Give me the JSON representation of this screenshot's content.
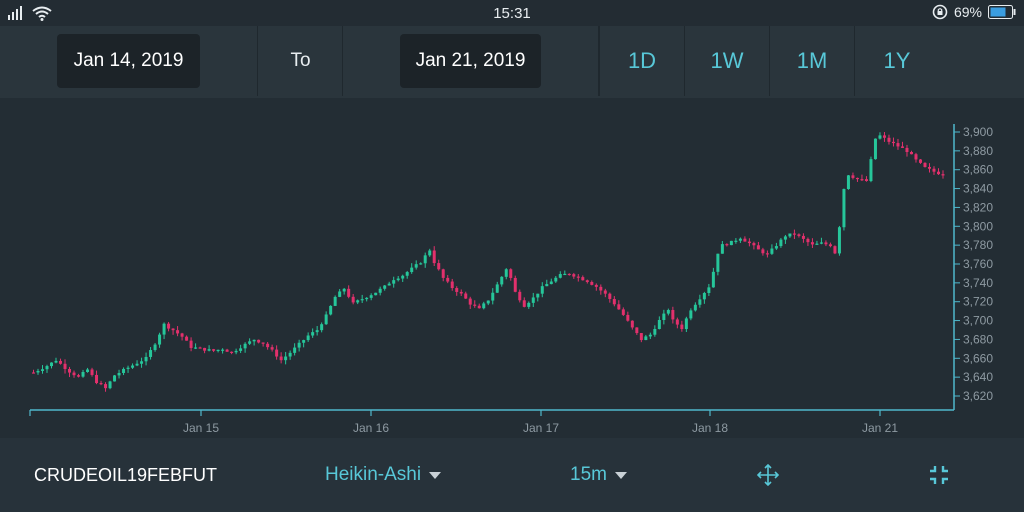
{
  "status": {
    "time": "15:31",
    "battery": "69%"
  },
  "toolbar": {
    "from_date": "Jan 14, 2019",
    "to_label": "To",
    "to_date": "Jan 21, 2019",
    "ranges": [
      "1D",
      "1W",
      "1M",
      "1Y"
    ]
  },
  "bottom": {
    "symbol": "CRUDEOIL19FEBFUT",
    "chart_type": "Heikin-Ashi",
    "interval": "15m"
  },
  "colors": {
    "up": "#26c69a",
    "down": "#e2306c",
    "accent": "#58c8d8",
    "axis": "#4fb8cc"
  },
  "chart_data": {
    "type": "candlestick",
    "style": "Heikin-Ashi",
    "x_labels": [
      "Jan 15",
      "Jan 16",
      "Jan 17",
      "Jan 18",
      "Jan 21"
    ],
    "ylim": [
      3610,
      3910
    ],
    "y_ticks": [
      3620,
      3640,
      3660,
      3680,
      3700,
      3720,
      3740,
      3760,
      3780,
      3800,
      3820,
      3840,
      3860,
      3880,
      3900
    ],
    "y_tick_labels": [
      "3,620",
      "3,640",
      "3,660",
      "3,680",
      "3,700",
      "3,720",
      "3,740",
      "3,760",
      "3,780",
      "3,800",
      "3,820",
      "3,840",
      "3,860",
      "3,880",
      "3,900"
    ],
    "grid": false,
    "close_path": [
      [
        0,
        3645
      ],
      [
        3,
        3652
      ],
      [
        5,
        3658
      ],
      [
        8,
        3646
      ],
      [
        10,
        3640
      ],
      [
        12,
        3648
      ],
      [
        14,
        3635
      ],
      [
        16,
        3628
      ],
      [
        18,
        3642
      ],
      [
        21,
        3650
      ],
      [
        23,
        3655
      ],
      [
        25,
        3660
      ],
      [
        27,
        3676
      ],
      [
        29,
        3696
      ],
      [
        31,
        3690
      ],
      [
        33,
        3683
      ],
      [
        35,
        3672
      ],
      [
        37,
        3670
      ],
      [
        40,
        3668
      ],
      [
        42,
        3670
      ],
      [
        44,
        3666
      ],
      [
        46,
        3672
      ],
      [
        49,
        3680
      ],
      [
        51,
        3676
      ],
      [
        53,
        3668
      ],
      [
        55,
        3658
      ],
      [
        57,
        3666
      ],
      [
        59,
        3675
      ],
      [
        61,
        3684
      ],
      [
        63,
        3690
      ],
      [
        65,
        3705
      ],
      [
        67,
        3725
      ],
      [
        69,
        3734
      ],
      [
        71,
        3718
      ],
      [
        73,
        3723
      ],
      [
        76,
        3730
      ],
      [
        78,
        3736
      ],
      [
        80,
        3744
      ],
      [
        82,
        3748
      ],
      [
        84,
        3755
      ],
      [
        86,
        3762
      ],
      [
        88,
        3775
      ],
      [
        89,
        3762
      ],
      [
        91,
        3745
      ],
      [
        93,
        3735
      ],
      [
        95,
        3728
      ],
      [
        97,
        3718
      ],
      [
        99,
        3712
      ],
      [
        101,
        3722
      ],
      [
        103,
        3738
      ],
      [
        105,
        3755
      ],
      [
        106,
        3745
      ],
      [
        107,
        3730
      ],
      [
        109,
        3716
      ],
      [
        111,
        3724
      ],
      [
        113,
        3735
      ],
      [
        115,
        3742
      ],
      [
        117,
        3748
      ],
      [
        119,
        3750
      ],
      [
        121,
        3746
      ],
      [
        123,
        3742
      ],
      [
        125,
        3736
      ],
      [
        127,
        3728
      ],
      [
        129,
        3718
      ],
      [
        131,
        3706
      ],
      [
        133,
        3692
      ],
      [
        135,
        3680
      ],
      [
        137,
        3685
      ],
      [
        139,
        3700
      ],
      [
        141,
        3712
      ],
      [
        142,
        3700
      ],
      [
        144,
        3692
      ],
      [
        146,
        3712
      ],
      [
        148,
        3724
      ],
      [
        150,
        3736
      ],
      [
        151,
        3752
      ],
      [
        152,
        3772
      ],
      [
        153,
        3780
      ],
      [
        155,
        3783
      ],
      [
        157,
        3788
      ],
      [
        159,
        3782
      ],
      [
        161,
        3775
      ],
      [
        163,
        3770
      ],
      [
        165,
        3780
      ],
      [
        167,
        3790
      ],
      [
        169,
        3792
      ],
      [
        171,
        3786
      ],
      [
        173,
        3780
      ],
      [
        175,
        3782
      ],
      [
        177,
        3780
      ],
      [
        178,
        3772
      ],
      [
        179,
        3800
      ],
      [
        180,
        3840
      ],
      [
        181,
        3855
      ],
      [
        183,
        3850
      ],
      [
        185,
        3848
      ],
      [
        186,
        3870
      ],
      [
        187,
        3893
      ],
      [
        188,
        3896
      ],
      [
        190,
        3890
      ],
      [
        192,
        3885
      ],
      [
        194,
        3880
      ],
      [
        196,
        3870
      ],
      [
        198,
        3862
      ],
      [
        200,
        3858
      ],
      [
        202,
        3855
      ]
    ]
  }
}
